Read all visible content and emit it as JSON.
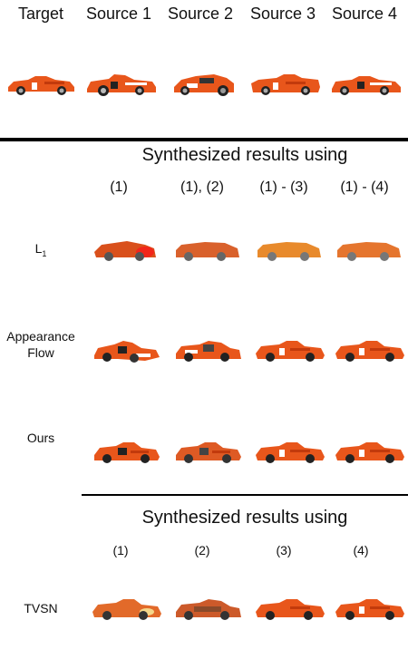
{
  "header": {
    "target": "Target",
    "sources": [
      "Source 1",
      "Source 2",
      "Source 3",
      "Source 4"
    ]
  },
  "section1": {
    "title": "Synthesized results using",
    "columns": [
      "(1)",
      "(1), (2)",
      "(1) - (3)",
      "(1) - (4)"
    ],
    "rows": [
      {
        "label_main": "L",
        "label_sub": "1"
      },
      {
        "label_line1": "Appearance",
        "label_line2": "Flow"
      },
      {
        "label": "Ours"
      }
    ]
  },
  "section2": {
    "title": "Synthesized results using",
    "columns": [
      "(1)",
      "(2)",
      "(3)",
      "(4)"
    ],
    "rows": [
      {
        "label": "TVSN"
      }
    ]
  },
  "colors": {
    "car_orange": "#e8561b",
    "car_dark_orange": "#c23a0c",
    "blur_orange": "#e5752e",
    "tire": "#222222"
  }
}
